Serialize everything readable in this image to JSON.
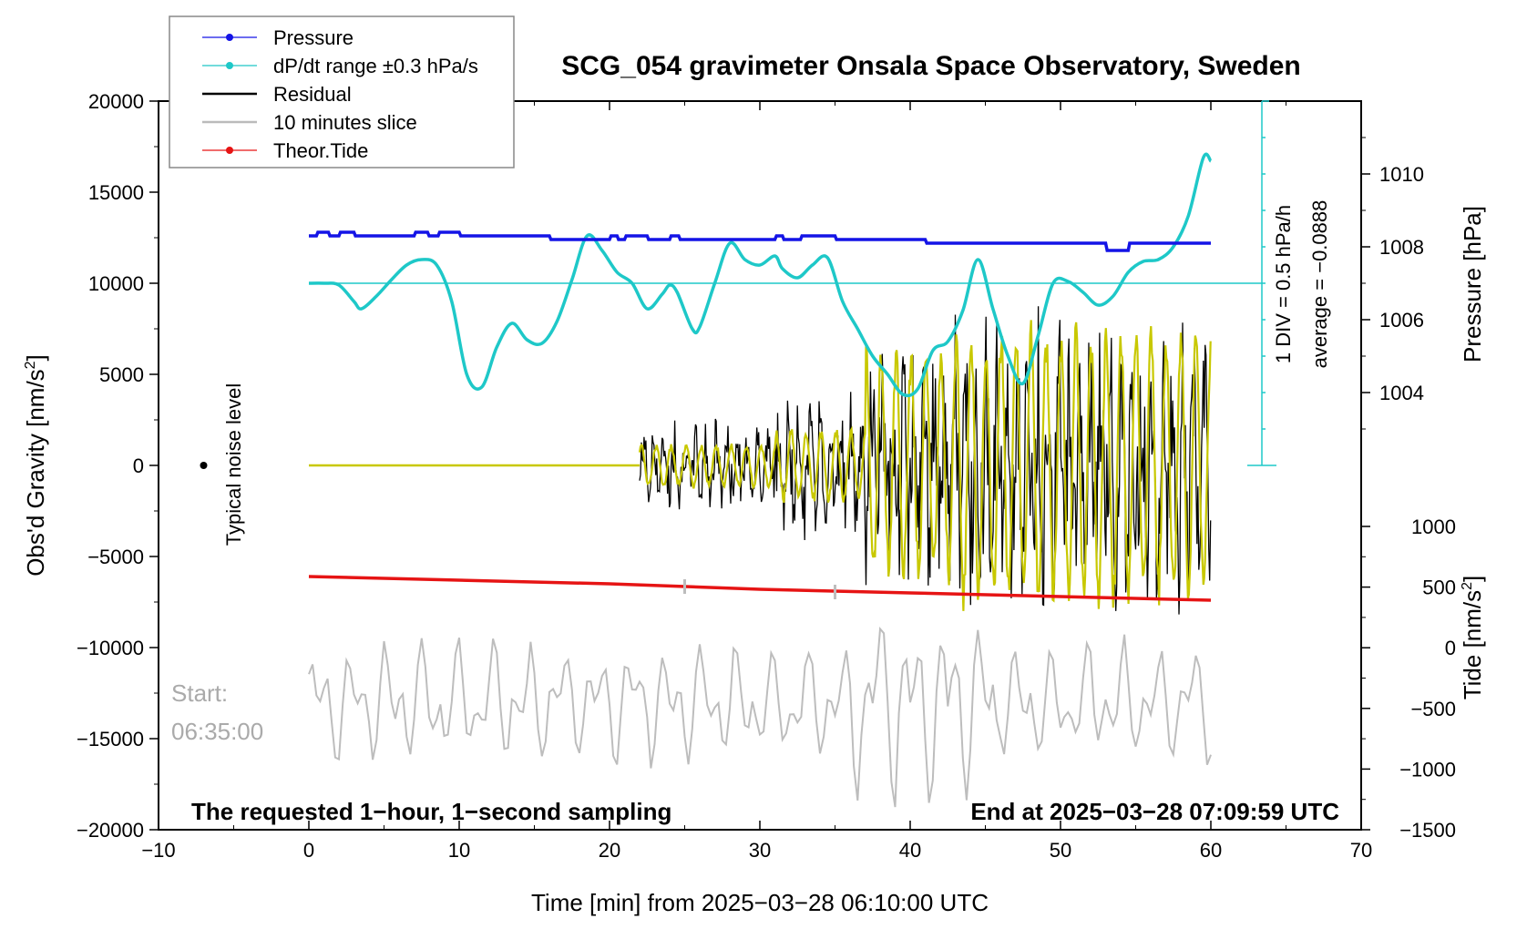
{
  "chart_data": {
    "type": "line",
    "title": "SCG_054 gravimeter Onsala Space Observatory, Sweden",
    "xlabel": "Time [min] from 2025−03−28 06:10:00 UTC",
    "xlim": [
      -10,
      70
    ],
    "x_ticks": [
      "−10",
      "0",
      "10",
      "20",
      "30",
      "40",
      "50",
      "60",
      "70"
    ],
    "y_left": {
      "label": "Obs'd Gravity [nm/s²]",
      "label_main": "Obs'd Gravity [nm/s",
      "label_sup": "2",
      "label_end": "]",
      "ylim": [
        -20000,
        20000
      ],
      "ticks": [
        "−20000",
        "−15000",
        "−10000",
        "−5000",
        "0",
        "5000",
        "10000",
        "15000",
        "20000"
      ]
    },
    "y_right_pressure": {
      "label": "Pressure [hPa]",
      "range_hpa": [
        1002,
        1012
      ],
      "ticks": [
        "1004",
        "1006",
        "1008",
        "1010"
      ],
      "annotation_div": "1 DIV = 0.5 hPa/h",
      "annotation_avg": "average = −0.0888"
    },
    "y_right_tide": {
      "label": "Tide [nm/s²]",
      "label_main": "Tide [nm/s",
      "label_sup": "2",
      "label_end": "]",
      "range": [
        -1500,
        1000
      ],
      "ticks": [
        "−1500",
        "−1000",
        "−500",
        "0",
        "500",
        "1000"
      ]
    },
    "legend": {
      "position": "top-left",
      "entries": [
        {
          "name": "Pressure",
          "color": "#1414e6",
          "marker": true
        },
        {
          "name": "dP/dt range ±0.3 hPa/s",
          "color": "#1ec8c8",
          "marker": true
        },
        {
          "name": "Residual",
          "color": "#000000",
          "marker": false
        },
        {
          "name": "10 minutes slice",
          "color": "#bbbbbb",
          "marker": false
        },
        {
          "name": "Theor.Tide",
          "color": "#e61414",
          "marker": true
        }
      ]
    },
    "series": [
      {
        "name": "Pressure",
        "unit": "hPa",
        "x": [
          0,
          0.5,
          0.6,
          1.3,
          1.4,
          2.0,
          2.1,
          3.0,
          3.1,
          7.0,
          7.1,
          7.9,
          8.0,
          8.6,
          8.7,
          10.0,
          10.1,
          16.0,
          16.1,
          20.0,
          20.1,
          20.5,
          20.6,
          21.0,
          21.1,
          22.5,
          22.6,
          24.0,
          24.1,
          24.6,
          24.7,
          31.0,
          31.1,
          31.5,
          31.6,
          32.7,
          32.8,
          35.0,
          35.1,
          41.0,
          41.1,
          53.0,
          53.1,
          54.5,
          54.6,
          60.0
        ],
        "values": [
          1008.3,
          1008.3,
          1008.4,
          1008.4,
          1008.3,
          1008.3,
          1008.4,
          1008.4,
          1008.3,
          1008.3,
          1008.4,
          1008.4,
          1008.3,
          1008.3,
          1008.4,
          1008.4,
          1008.3,
          1008.3,
          1008.2,
          1008.2,
          1008.3,
          1008.3,
          1008.2,
          1008.2,
          1008.3,
          1008.3,
          1008.2,
          1008.2,
          1008.3,
          1008.3,
          1008.2,
          1008.2,
          1008.3,
          1008.3,
          1008.2,
          1008.2,
          1008.3,
          1008.3,
          1008.2,
          1008.2,
          1008.1,
          1008.1,
          1007.9,
          1007.9,
          1008.1,
          1008.1
        ]
      },
      {
        "name": "dP/dt",
        "unit": "nm/s² (plot scale)",
        "x": [
          0,
          1,
          2,
          3,
          3.5,
          4.5,
          5.5,
          6.5,
          7.5,
          8.5,
          9.5,
          10.5,
          11.5,
          12.5,
          13.5,
          14.5,
          15.5,
          16.5,
          17.5,
          18.5,
          19.5,
          20.5,
          21.5,
          22.5,
          23.5,
          24,
          24.5,
          25.5,
          26,
          27,
          28,
          29,
          30,
          31,
          31.5,
          32.5,
          33.5,
          34.5,
          35.5,
          36.5,
          37.5,
          38.5,
          39.5,
          40.5,
          41.5,
          42.5,
          43.5,
          44.5,
          45.5,
          46.5,
          47.5,
          48.5,
          49.5,
          50.5,
          51.5,
          52.5,
          53.5,
          54.5,
          55.5,
          56.5,
          57.5,
          58.5,
          59.5,
          60
        ],
        "values": [
          10000,
          10000,
          9900,
          9000,
          8600,
          9300,
          10200,
          11000,
          11300,
          11000,
          9000,
          5000,
          4300,
          6500,
          7800,
          6900,
          6700,
          7900,
          10200,
          12600,
          11800,
          10600,
          10000,
          8600,
          9400,
          9900,
          9500,
          7500,
          7600,
          10000,
          12200,
          11300,
          11000,
          11500,
          10800,
          10300,
          11000,
          11400,
          9000,
          7500,
          6000,
          5000,
          3900,
          4200,
          6300,
          6800,
          8500,
          11300,
          8600,
          6000,
          4500,
          7100,
          10000,
          10100,
          9500,
          8800,
          9300,
          10600,
          11200,
          11300,
          12000,
          13700,
          16900,
          16700
        ]
      },
      {
        "name": "Theor.Tide",
        "unit": "nm/s² (plot scale)",
        "x": [
          0,
          10,
          20,
          30,
          40,
          50,
          60
        ],
        "values": [
          -6100,
          -6300,
          -6500,
          -6800,
          -7000,
          -7200,
          -7400
        ]
      },
      {
        "name": "Residual",
        "unit": "nm/s²",
        "start_minute": 22,
        "approx_amplitude": [
          {
            "from": 22,
            "to": 31,
            "amp": 3000
          },
          {
            "from": 31,
            "to": 37,
            "amp": 5000
          },
          {
            "from": 37,
            "to": 43,
            "amp": 8000
          },
          {
            "from": 43,
            "to": 60,
            "amp": 9500
          }
        ]
      },
      {
        "name": "10 minutes slice",
        "unit": "nm/s² (offset)",
        "baseline": -13000,
        "approx_amplitude": 4000
      }
    ],
    "annotations": {
      "noise_label": "Typical noise level",
      "start_label": "Start:",
      "start_time": "06:35:00",
      "bottom_left": "The requested 1−hour, 1−second sampling",
      "bottom_right": "End at 2025−03−28 07:09:59 UTC"
    }
  }
}
